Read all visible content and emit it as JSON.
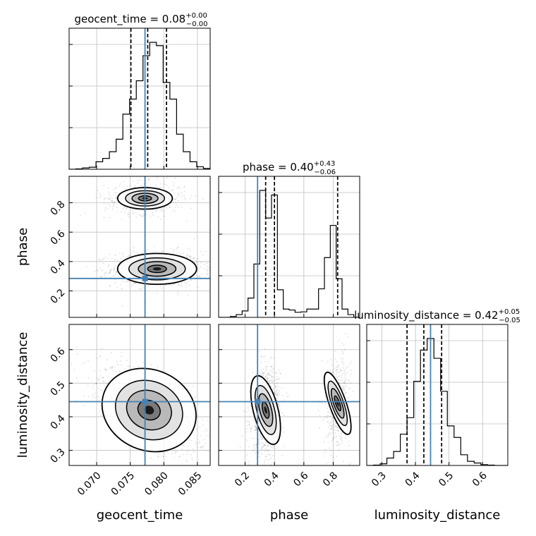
{
  "chart_data": {
    "type": "corner",
    "parameters": [
      "geocent_time",
      "phase",
      "luminosity_distance"
    ],
    "truths": {
      "geocent_time": 0.0772,
      "phase": 0.285,
      "luminosity_distance": 0.445
    },
    "axes": {
      "geocent_time": {
        "range": [
          0.0659,
          0.0869
        ],
        "ticks": [
          0.07,
          0.075,
          0.08,
          0.085
        ],
        "tick_labels": [
          "0.070",
          "0.075",
          "0.080",
          "0.085"
        ]
      },
      "phase": {
        "range": [
          0.02,
          0.98
        ],
        "ticks": [
          0.2,
          0.4,
          0.6,
          0.8
        ],
        "tick_labels": [
          "0.2",
          "0.4",
          "0.6",
          "0.8"
        ]
      },
      "luminosity_distance": {
        "range": [
          0.255,
          0.675
        ],
        "ticks": [
          0.3,
          0.4,
          0.5,
          0.6
        ],
        "tick_labels": [
          "0.3",
          "0.4",
          "0.5",
          "0.6"
        ]
      }
    },
    "axis_labels": {
      "x": [
        "geocent_time",
        "phase",
        "luminosity_distance"
      ],
      "y": [
        "phase",
        "luminosity_distance"
      ]
    },
    "titles": [
      {
        "text": "geocent_time = 0.08",
        "sup": "+0.00",
        "sub": "−0.00"
      },
      {
        "text": "phase = 0.40",
        "sup": "+0.43",
        "sub": "−0.06"
      },
      {
        "text": "luminosity_distance = 0.42",
        "sup": "+0.05",
        "sub": "−0.05"
      }
    ],
    "histograms": {
      "geocent_time": {
        "bin_edges": [
          0.0659,
          0.0669,
          0.0679,
          0.0689,
          0.0699,
          0.0709,
          0.0719,
          0.0729,
          0.0739,
          0.0749,
          0.0759,
          0.0769,
          0.0779,
          0.0789,
          0.0799,
          0.0809,
          0.0819,
          0.0829,
          0.0839,
          0.0849,
          0.0859,
          0.0869
        ],
        "counts": [
          0,
          2,
          8,
          12,
          45,
          65,
          105,
          180,
          330,
          420,
          530,
          680,
          760,
          740,
          520,
          420,
          210,
          105,
          45,
          15,
          5
        ],
        "quantile_lines": [
          0.0751,
          0.0776,
          0.0804
        ]
      },
      "phase": {
        "bin_edges": [
          0.02,
          0.06,
          0.1,
          0.14,
          0.18,
          0.22,
          0.26,
          0.3,
          0.34,
          0.38,
          0.42,
          0.46,
          0.5,
          0.54,
          0.58,
          0.62,
          0.66,
          0.7,
          0.74,
          0.78,
          0.82,
          0.86,
          0.9,
          0.94,
          0.98
        ],
        "counts": [
          0,
          0,
          10,
          30,
          70,
          210,
          580,
          1380,
          1080,
          1330,
          300,
          90,
          80,
          55,
          60,
          90,
          90,
          310,
          650,
          1000,
          420,
          90,
          30,
          0
        ],
        "quantile_lines": [
          0.34,
          0.4,
          0.83
        ]
      },
      "luminosity_distance": {
        "bin_edges": [
          0.255,
          0.275,
          0.295,
          0.315,
          0.335,
          0.355,
          0.375,
          0.395,
          0.415,
          0.435,
          0.455,
          0.475,
          0.495,
          0.515,
          0.535,
          0.555,
          0.575,
          0.595,
          0.615,
          0.635,
          0.655,
          0.675
        ],
        "counts": [
          0,
          2,
          10,
          45,
          85,
          190,
          290,
          510,
          700,
          770,
          650,
          450,
          240,
          170,
          65,
          25,
          15,
          5,
          2,
          0,
          0
        ],
        "quantile_lines": [
          0.375,
          0.425,
          0.478
        ]
      }
    },
    "density_modes": {
      "phase_vs_geocent_time": [
        {
          "x": 0.079,
          "y": 0.35,
          "sx": 0.0028,
          "sy": 0.05,
          "w": 0.7
        },
        {
          "x": 0.0772,
          "y": 0.83,
          "sx": 0.0025,
          "sy": 0.045,
          "w": 0.3
        }
      ],
      "luminosity_distance_vs_geocent_time": [
        {
          "x": 0.0778,
          "y": 0.42,
          "sx": 0.003,
          "sy": 0.05,
          "rho": -0.6,
          "w": 1.0
        }
      ],
      "luminosity_distance_vs_phase": [
        {
          "x": 0.34,
          "y": 0.42,
          "sx": 0.04,
          "sy": 0.05,
          "rho": 0.1,
          "w": 0.7
        },
        {
          "x": 0.83,
          "y": 0.44,
          "sx": 0.035,
          "sy": 0.06,
          "rho": 0.1,
          "w": 0.3
        }
      ]
    },
    "grid": true,
    "truth_color": "#4682b4",
    "hist_color": "#000000"
  }
}
